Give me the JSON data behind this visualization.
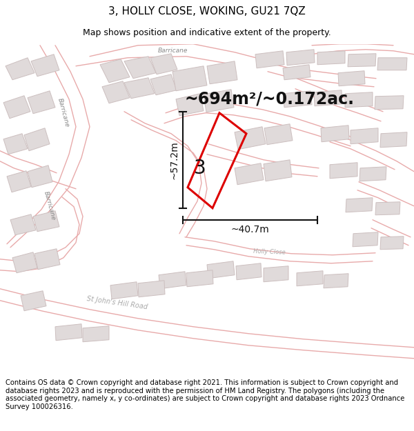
{
  "title": "3, HOLLY CLOSE, WOKING, GU21 7QZ",
  "subtitle": "Map shows position and indicative extent of the property.",
  "area_text": "~694m²/~0.172ac.",
  "dim_width": "~40.7m",
  "dim_height": "~57.2m",
  "label": "3",
  "footer": "Contains OS data © Crown copyright and database right 2021. This information is subject to Crown copyright and database rights 2023 and is reproduced with the permission of HM Land Registry. The polygons (including the associated geometry, namely x, y co-ordinates) are subject to Crown copyright and database rights 2023 Ordnance Survey 100026316.",
  "map_bg": "#f7f4f4",
  "road_color": "#e8aaaa",
  "building_fill": "#e0dada",
  "building_edge": "#ccbfbf",
  "property_fill": "none",
  "property_edge": "#dd0000",
  "dim_line_color": "#111111",
  "text_color": "#888888",
  "title_fontsize": 11,
  "subtitle_fontsize": 9,
  "area_fontsize": 17,
  "label_fontsize": 20,
  "footer_fontsize": 7.2,
  "road_lw": 1.0,
  "building_lw": 0.7
}
